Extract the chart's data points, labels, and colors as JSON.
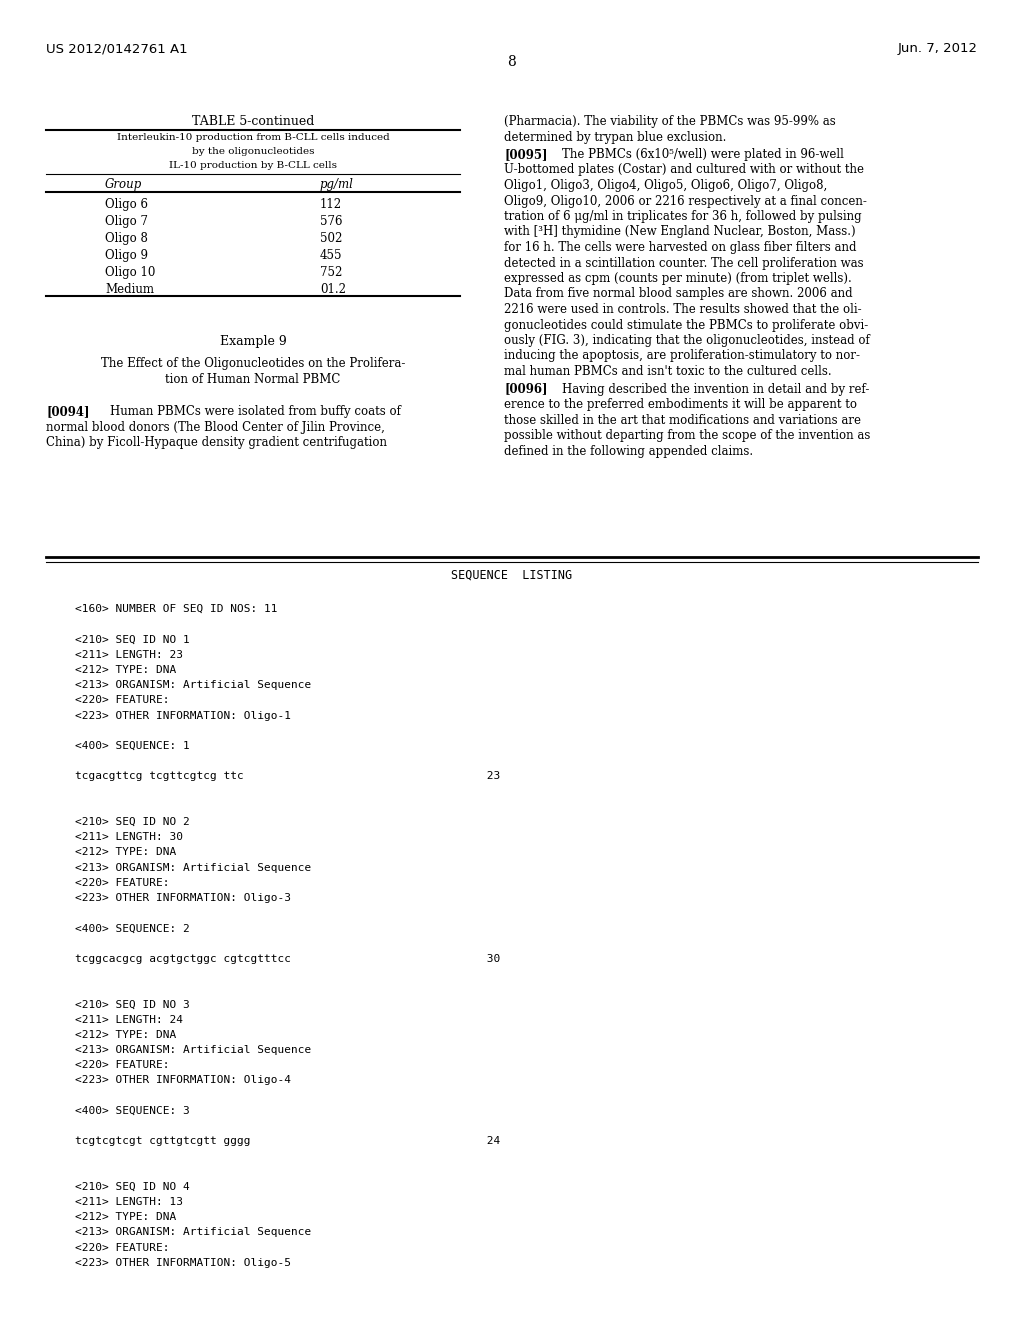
{
  "background_color": "#ffffff",
  "page_width": 10.24,
  "page_height": 13.2,
  "header_left": "US 2012/0142761 A1",
  "header_right": "Jun. 7, 2012",
  "page_number": "8",
  "table_title": "TABLE 5-continued",
  "table_subtitle1": "Interleukin-10 production from B-CLL cells induced",
  "table_subtitle2": "by the oligonucleotides",
  "table_subtitle3": "IL-10 production by B-CLL cells",
  "table_col1_header": "Group",
  "table_col2_header": "pg/ml",
  "table_rows": [
    [
      "Oligo 6",
      "112"
    ],
    [
      "Oligo 7",
      "576"
    ],
    [
      "Oligo 8",
      "502"
    ],
    [
      "Oligo 9",
      "455"
    ],
    [
      "Oligo 10",
      "752"
    ],
    [
      "Medium",
      "01.2"
    ]
  ],
  "example9_title": "Example 9",
  "example9_subtitle1": "The Effect of the Oligonucleotides on the Prolifera-",
  "example9_subtitle2": "tion of Human Normal PBMC",
  "para0094_label": "[0094]",
  "para0094_lines": [
    "Human PBMCs were isolated from buffy coats of",
    "normal blood donors (The Blood Center of Jilin Province,",
    "China) by Ficoll-Hypaque density gradient centrifugation"
  ],
  "right_col_top_lines": [
    "(Pharmacia). The viability of the PBMCs was 95-99% as",
    "determined by trypan blue exclusion."
  ],
  "para0095_label": "[0095]",
  "para0095_lines": [
    "The PBMCs (6x10⁵/well) were plated in 96-well",
    "U-bottomed plates (Costar) and cultured with or without the",
    "Oligo1, Oligo3, Oligo4, Oligo5, Oligo6, Oligo7, Oligo8,",
    "Oligo9, Oligo10, 2006 or 2216 respectively at a final concen-",
    "tration of 6 μg/ml in triplicates for 36 h, followed by pulsing",
    "with [³H] thymidine (New England Nuclear, Boston, Mass.)",
    "for 16 h. The cells were harvested on glass fiber filters and",
    "detected in a scintillation counter. The cell proliferation was",
    "expressed as cpm (counts per minute) (from triplet wells).",
    "Data from five normal blood samples are shown. 2006 and",
    "2216 were used in controls. The results showed that the oli-",
    "gonucleotides could stimulate the PBMCs to proliferate obvi-",
    "ously (FIG. 3), indicating that the oligonucleotides, instead of",
    "inducing the apoptosis, are proliferation-stimulatory to nor-",
    "mal human PBMCs and isn't toxic to the cultured cells."
  ],
  "para0096_label": "[0096]",
  "para0096_lines": [
    "Having described the invention in detail and by ref-",
    "erence to the preferred embodiments it will be apparent to",
    "those skilled in the art that modifications and variations are",
    "possible without departing from the scope of the invention as",
    "defined in the following appended claims."
  ],
  "seq_listing_title": "SEQUENCE  LISTING",
  "seq_lines": [
    "",
    "<160> NUMBER OF SEQ ID NOS: 11",
    "",
    "<210> SEQ ID NO 1",
    "<211> LENGTH: 23",
    "<212> TYPE: DNA",
    "<213> ORGANISM: Artificial Sequence",
    "<220> FEATURE:",
    "<223> OTHER INFORMATION: Oligo-1",
    "",
    "<400> SEQUENCE: 1",
    "",
    "tcgacgttcg tcgttcgtcg ttc                                    23",
    "",
    "",
    "<210> SEQ ID NO 2",
    "<211> LENGTH: 30",
    "<212> TYPE: DNA",
    "<213> ORGANISM: Artificial Sequence",
    "<220> FEATURE:",
    "<223> OTHER INFORMATION: Oligo-3",
    "",
    "<400> SEQUENCE: 2",
    "",
    "tcggcacgcg acgtgctggc cgtcgtttcc                             30",
    "",
    "",
    "<210> SEQ ID NO 3",
    "<211> LENGTH: 24",
    "<212> TYPE: DNA",
    "<213> ORGANISM: Artificial Sequence",
    "<220> FEATURE:",
    "<223> OTHER INFORMATION: Oligo-4",
    "",
    "<400> SEQUENCE: 3",
    "",
    "tcgtcgtcgt cgttgtcgtt gggg                                   24",
    "",
    "",
    "<210> SEQ ID NO 4",
    "<211> LENGTH: 13",
    "<212> TYPE: DNA",
    "<213> ORGANISM: Artificial Sequence",
    "<220> FEATURE:",
    "<223> OTHER INFORMATION: Oligo-5"
  ]
}
